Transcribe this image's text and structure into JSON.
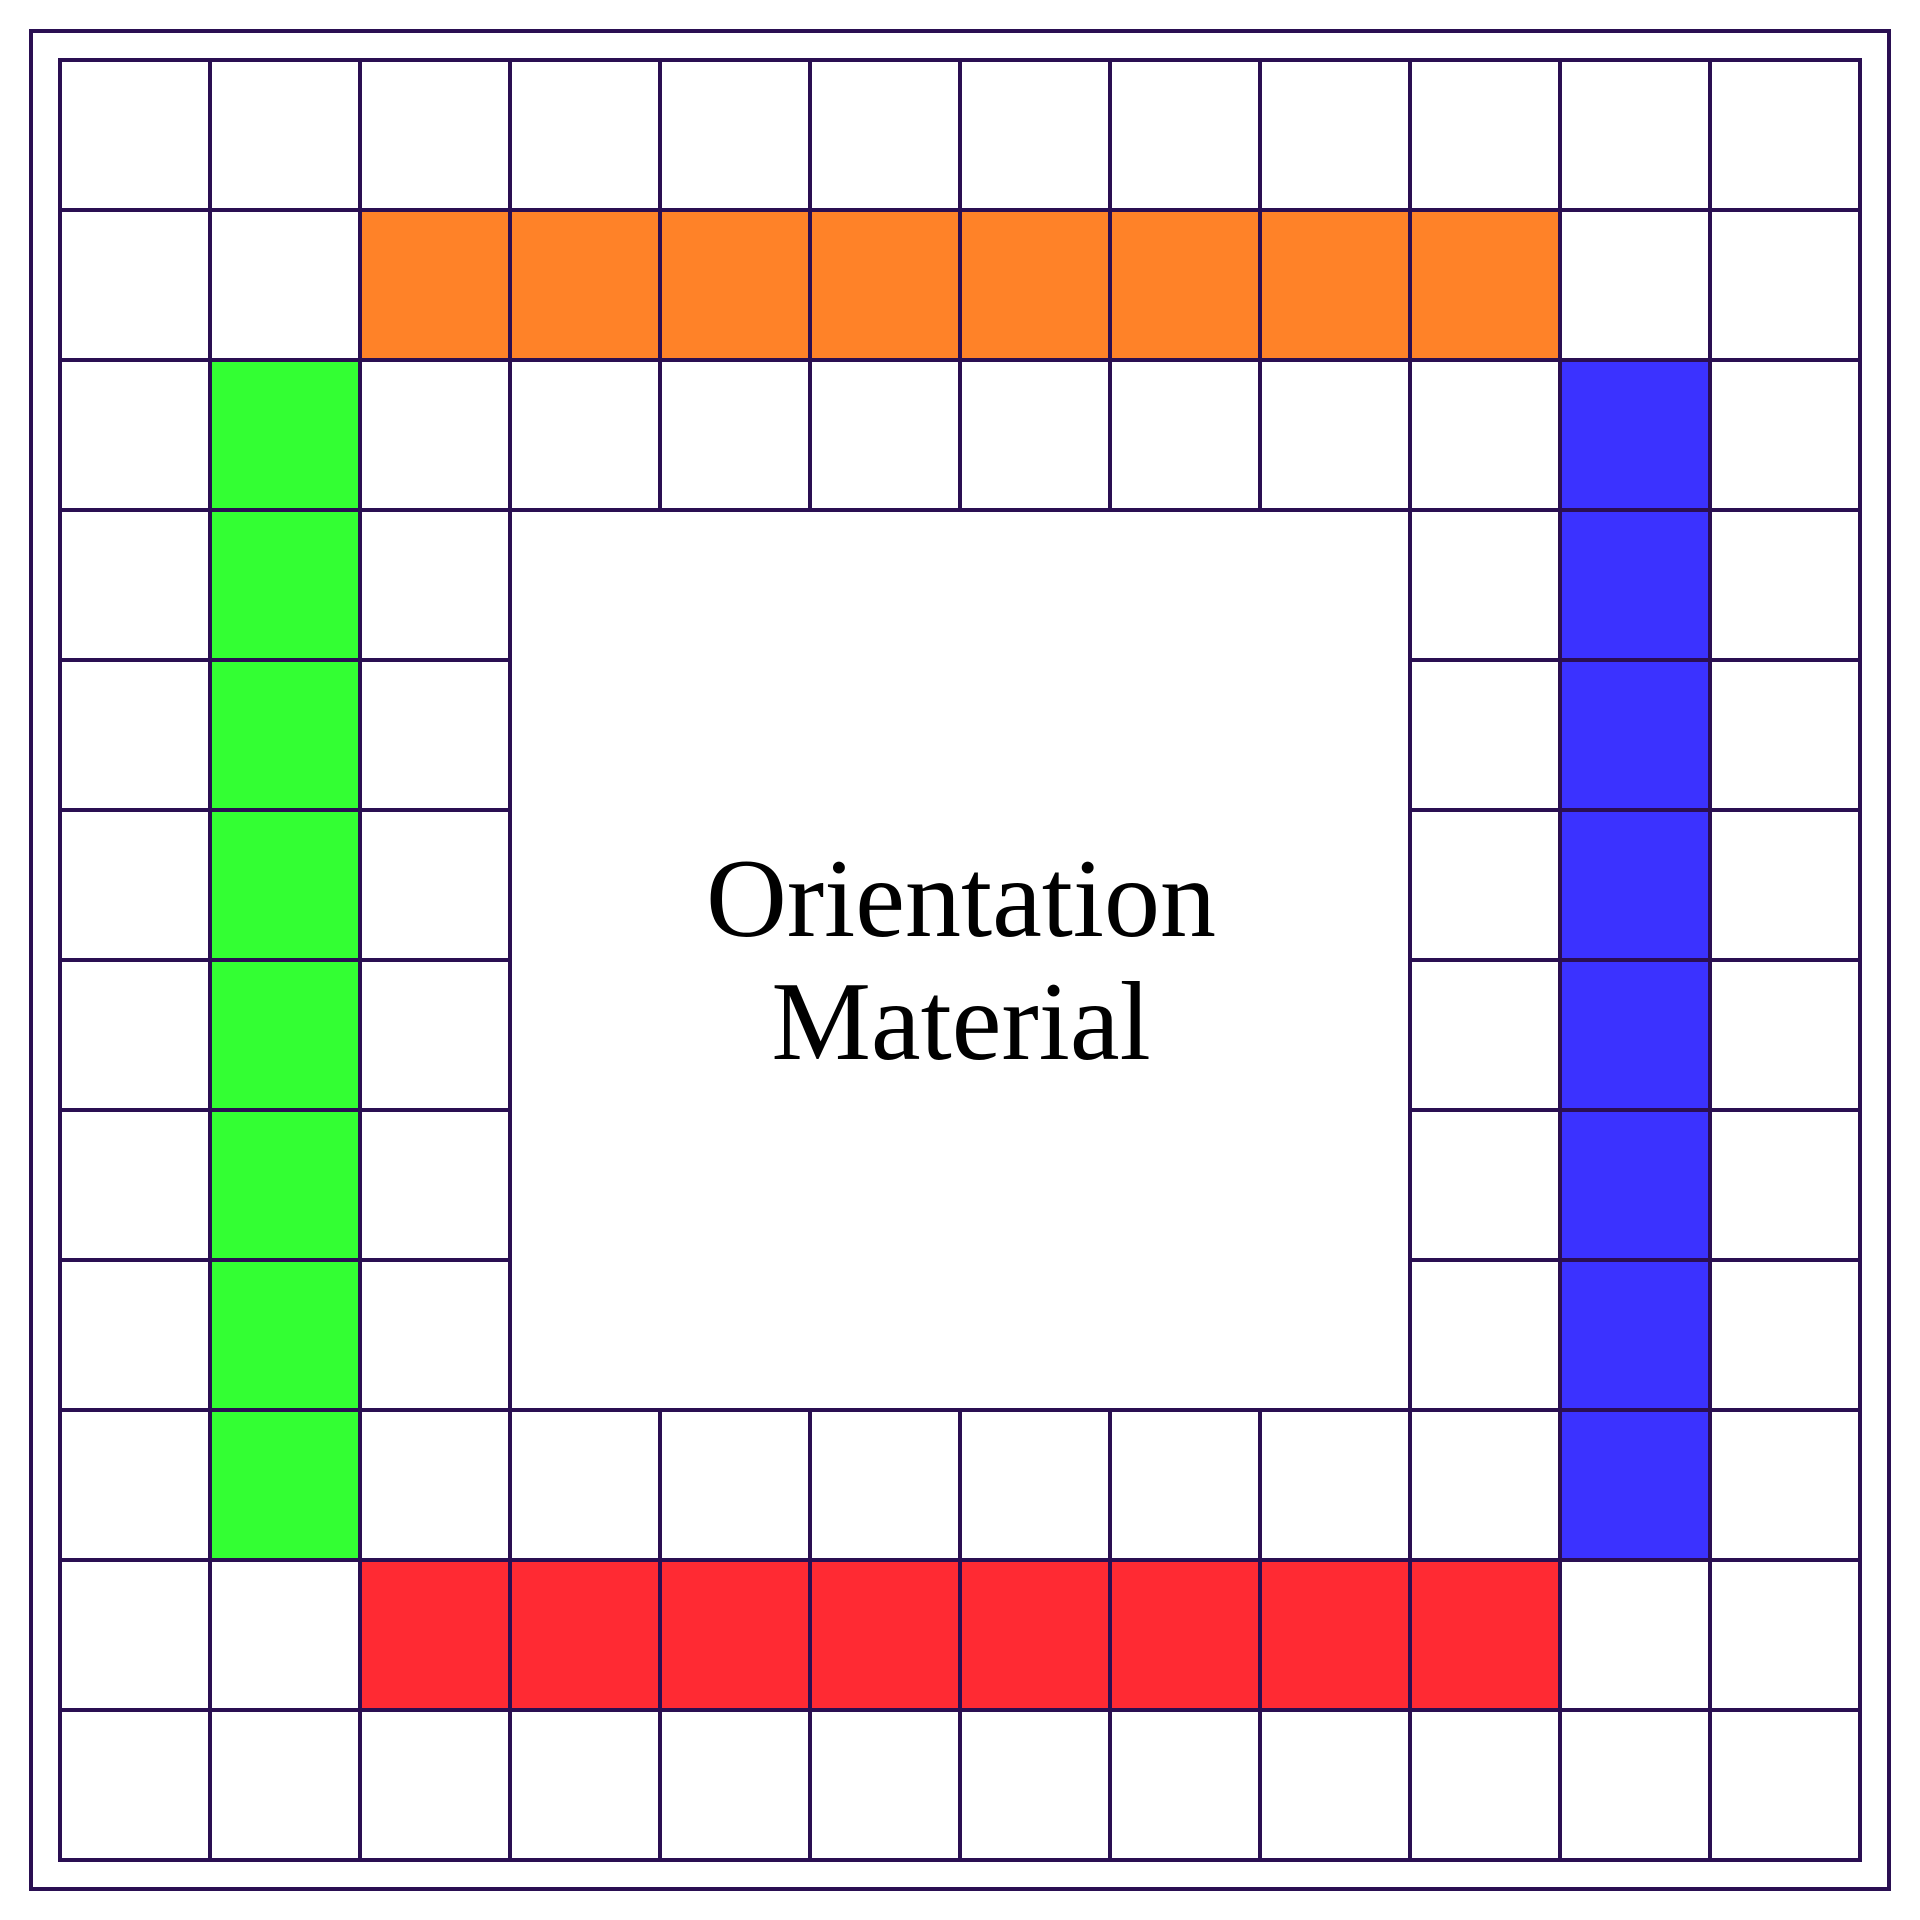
{
  "board": {
    "cols": 12,
    "rows": 12,
    "line_color": "#2a0f52",
    "background": "#ffffff",
    "center_label": {
      "line1": "Orientation",
      "line2": "Material"
    },
    "colored_cells": [
      {
        "name": "orange-top-track",
        "color": "#ff8228",
        "cells": [
          [
            1,
            2
          ],
          [
            1,
            3
          ],
          [
            1,
            4
          ],
          [
            1,
            5
          ],
          [
            1,
            6
          ],
          [
            1,
            7
          ],
          [
            1,
            8
          ],
          [
            1,
            9
          ]
        ]
      },
      {
        "name": "green-left-track",
        "color": "#33ff33",
        "cells": [
          [
            2,
            1
          ],
          [
            3,
            1
          ],
          [
            4,
            1
          ],
          [
            5,
            1
          ],
          [
            6,
            1
          ],
          [
            7,
            1
          ],
          [
            8,
            1
          ],
          [
            9,
            1
          ]
        ]
      },
      {
        "name": "blue-right-track",
        "color": "#3b32ff",
        "cells": [
          [
            2,
            10
          ],
          [
            3,
            10
          ],
          [
            4,
            10
          ],
          [
            5,
            10
          ],
          [
            6,
            10
          ],
          [
            7,
            10
          ],
          [
            8,
            10
          ],
          [
            9,
            10
          ]
        ]
      },
      {
        "name": "red-bottom-track",
        "color": "#ff2a33",
        "cells": [
          [
            10,
            2
          ],
          [
            10,
            3
          ],
          [
            10,
            4
          ],
          [
            10,
            5
          ],
          [
            10,
            6
          ],
          [
            10,
            7
          ],
          [
            10,
            8
          ],
          [
            10,
            9
          ]
        ]
      }
    ],
    "center_region": {
      "row_start": 3,
      "row_end": 8,
      "col_start": 3,
      "col_end": 8
    }
  }
}
